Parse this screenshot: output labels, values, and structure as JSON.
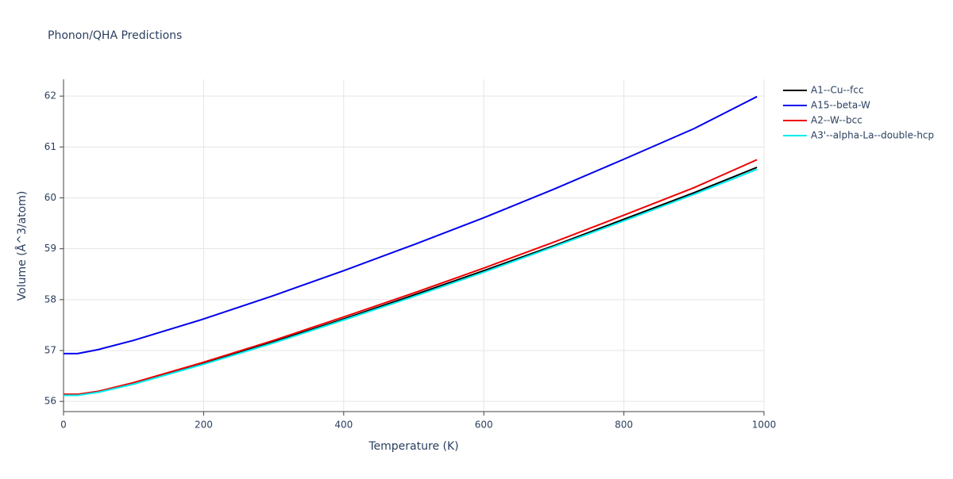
{
  "chart_data": {
    "type": "line",
    "title": "Phonon/QHA Predictions",
    "x_label": "Temperature (K)",
    "y_label": "Volume (Å^3/atom)",
    "x": [
      0,
      20,
      50,
      100,
      200,
      300,
      400,
      500,
      600,
      700,
      800,
      900,
      990
    ],
    "series": [
      {
        "name": "A1--Cu--fcc",
        "color": "#000000",
        "values": [
          56.13,
          56.13,
          56.19,
          56.35,
          56.75,
          57.17,
          57.62,
          58.09,
          58.57,
          59.06,
          59.58,
          60.1,
          60.6
        ]
      },
      {
        "name": "A15--beta-W",
        "color": "#0000ee",
        "values": [
          56.94,
          56.94,
          57.02,
          57.2,
          57.62,
          58.08,
          58.57,
          59.08,
          59.61,
          60.17,
          60.76,
          61.36,
          61.99
        ]
      },
      {
        "name": "A2--W--bcc",
        "color": "#ee0000",
        "values": [
          56.14,
          56.14,
          56.2,
          56.37,
          56.77,
          57.2,
          57.66,
          58.13,
          58.62,
          59.13,
          59.66,
          60.2,
          60.75
        ]
      },
      {
        "name": "A3'--alpha-La--double-hcp",
        "color": "#00eeee",
        "values": [
          56.12,
          56.12,
          56.18,
          56.34,
          56.73,
          57.15,
          57.6,
          58.06,
          58.54,
          59.04,
          59.55,
          60.07,
          60.56
        ]
      }
    ],
    "xlim": [
      0,
      1000
    ],
    "ylim": [
      55.8,
      62.33
    ],
    "xticks": [
      0,
      200,
      400,
      600,
      800,
      1000
    ],
    "yticks": [
      56,
      57,
      58,
      59,
      60,
      61,
      62
    ],
    "grid": true,
    "legend": "right"
  }
}
